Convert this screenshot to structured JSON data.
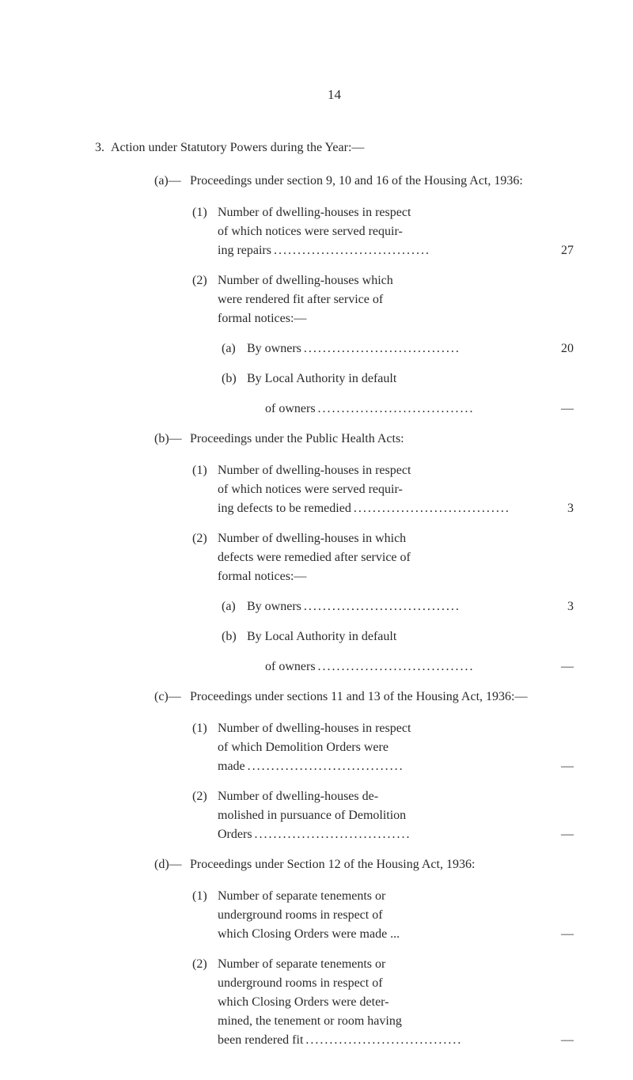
{
  "pageNumber": "14",
  "section3": {
    "number": "3.",
    "text": "Action under Statutory Powers during the Year:—"
  },
  "subA": {
    "letter": "(a)—",
    "text": "Proceedings under section 9, 10 and 16 of the Housing Act, 1936:",
    "item1": {
      "num": "(1)",
      "line1": "Number of dwelling-houses in respect",
      "line2": "of which notices were served requir-",
      "line3": "ing repairs",
      "value": "27"
    },
    "item2": {
      "num": "(2)",
      "line1": "Number of dwelling-houses which",
      "line2": "were rendered fit after service of",
      "line3": "formal notices:—"
    },
    "subA2a": {
      "letter": "(a)",
      "text": "By owners",
      "value": "20"
    },
    "subA2b": {
      "letter": "(b)",
      "text": "By Local Authority in default",
      "ofOwners": "of owners",
      "value": "—"
    }
  },
  "subB": {
    "letter": "(b)—",
    "text": "Proceedings under the Public Health Acts:",
    "item1": {
      "num": "(1)",
      "line1": "Number of dwelling-houses in respect",
      "line2": "of which notices were served requir-",
      "line3": "ing defects to be remedied",
      "value": "3"
    },
    "item2": {
      "num": "(2)",
      "line1": "Number of dwelling-houses in which",
      "line2": "defects were remedied after service of",
      "line3": "formal notices:—"
    },
    "subB2a": {
      "letter": "(a)",
      "text": "By owners",
      "value": "3"
    },
    "subB2b": {
      "letter": "(b)",
      "text": "By Local Authority in default",
      "ofOwners": "of owners",
      "value": "—"
    }
  },
  "subC": {
    "letter": "(c)—",
    "text": "Proceedings under sections 11 and 13 of the Housing Act, 1936:—",
    "item1": {
      "num": "(1)",
      "line1": "Number of dwelling-houses in respect",
      "line2": "of which Demolition Orders were",
      "line3": "made",
      "value": "—"
    },
    "item2": {
      "num": "(2)",
      "line1": "Number of dwelling-houses de-",
      "line2": "molished in pursuance of Demolition",
      "line3": "Orders",
      "value": "—"
    }
  },
  "subD": {
    "letter": "(d)—",
    "text": "Proceedings under Section 12 of the Housing Act, 1936:",
    "item1": {
      "num": "(1)",
      "line1": "Number of separate tenements or",
      "line2": "underground rooms in respect of",
      "line3": "which Closing Orders were made ...",
      "value": "—"
    },
    "item2": {
      "num": "(2)",
      "line1": "Number of separate tenements or",
      "line2": "underground rooms in respect of",
      "line3": "which Closing Orders were deter-",
      "line4": "mined, the tenement or room having",
      "line5": "been rendered fit",
      "value": "—"
    }
  },
  "dots": "................................."
}
